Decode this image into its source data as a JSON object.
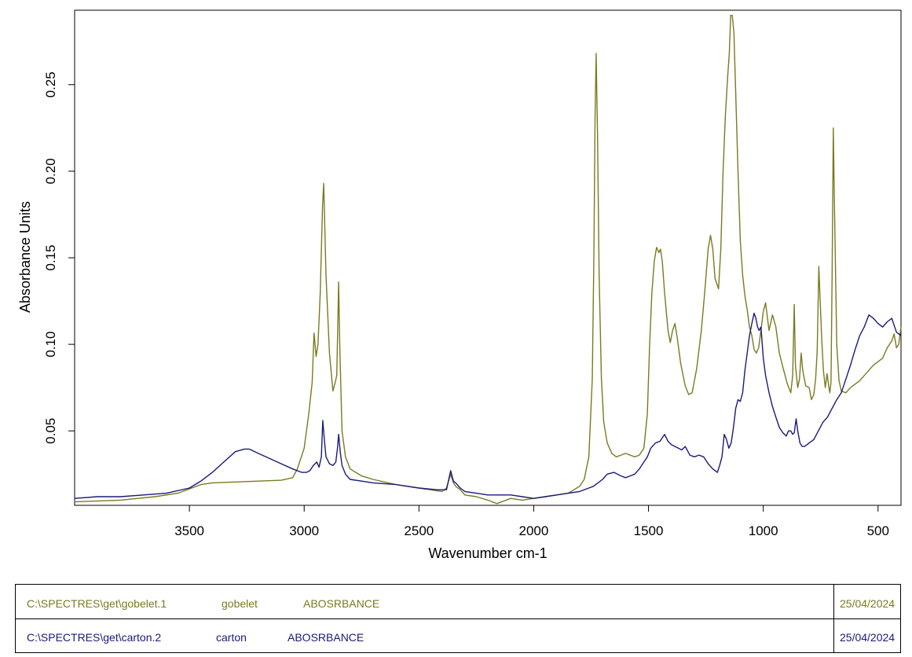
{
  "chart_data": {
    "type": "line",
    "title": "",
    "xlabel": "Wavenumber cm-1",
    "ylabel": "Absorbance Units",
    "xlim": [
      4000,
      400
    ],
    "ylim": [
      0.007,
      0.293
    ],
    "xticks": [
      3500,
      3000,
      2500,
      2000,
      1500,
      1000,
      500
    ],
    "yticks": [
      0.05,
      0.1,
      0.15,
      0.2,
      0.25
    ],
    "ytick_labels": [
      "0.05",
      "0.10",
      "0.15",
      "0.20",
      "0.25"
    ],
    "grid": false,
    "series": [
      {
        "name": "gobelet",
        "color": "#7a7a22",
        "x": [
          4000,
          3800,
          3650,
          3550,
          3450,
          3400,
          3300,
          3200,
          3100,
          3050,
          3030,
          3000,
          2980,
          2965,
          2957,
          2948,
          2940,
          2930,
          2920,
          2915,
          2905,
          2890,
          2875,
          2865,
          2858,
          2850,
          2845,
          2835,
          2820,
          2800,
          2750,
          2700,
          2600,
          2500,
          2400,
          2380,
          2362,
          2350,
          2340,
          2320,
          2300,
          2250,
          2200,
          2160,
          2100,
          2050,
          2000,
          1950,
          1900,
          1850,
          1800,
          1780,
          1760,
          1745,
          1738,
          1733,
          1728,
          1722,
          1715,
          1705,
          1695,
          1680,
          1660,
          1640,
          1620,
          1600,
          1580,
          1560,
          1540,
          1520,
          1505,
          1495,
          1485,
          1475,
          1465,
          1455,
          1448,
          1440,
          1430,
          1415,
          1405,
          1395,
          1385,
          1375,
          1360,
          1340,
          1325,
          1310,
          1290,
          1270,
          1255,
          1240,
          1230,
          1220,
          1210,
          1195,
          1185,
          1175,
          1165,
          1155,
          1148,
          1142,
          1135,
          1128,
          1120,
          1110,
          1100,
          1090,
          1080,
          1070,
          1060,
          1050,
          1040,
          1030,
          1020,
          1010,
          1000,
          990,
          975,
          960,
          945,
          930,
          915,
          895,
          880,
          872,
          865,
          860,
          850,
          842,
          835,
          828,
          815,
          800,
          790,
          780,
          772,
          765,
          758,
          752,
          745,
          738,
          730,
          722,
          715,
          710,
          705,
          700,
          695,
          690,
          680,
          670,
          660,
          640,
          620,
          600,
          580,
          560,
          540,
          520,
          500,
          480,
          470,
          460,
          450,
          440,
          430,
          420,
          410,
          400
        ],
        "values": [
          0.009,
          0.01,
          0.012,
          0.014,
          0.019,
          0.02,
          0.0205,
          0.021,
          0.0215,
          0.023,
          0.028,
          0.04,
          0.06,
          0.078,
          0.1065,
          0.093,
          0.1,
          0.13,
          0.18,
          0.193,
          0.14,
          0.095,
          0.073,
          0.078,
          0.082,
          0.136,
          0.1,
          0.05,
          0.035,
          0.028,
          0.024,
          0.022,
          0.019,
          0.017,
          0.015,
          0.017,
          0.025,
          0.02,
          0.018,
          0.016,
          0.013,
          0.012,
          0.01,
          0.008,
          0.011,
          0.01,
          0.011,
          0.012,
          0.013,
          0.014,
          0.018,
          0.022,
          0.035,
          0.08,
          0.15,
          0.23,
          0.268,
          0.22,
          0.14,
          0.08,
          0.055,
          0.043,
          0.037,
          0.035,
          0.036,
          0.037,
          0.036,
          0.035,
          0.036,
          0.04,
          0.06,
          0.1,
          0.13,
          0.148,
          0.156,
          0.153,
          0.155,
          0.148,
          0.13,
          0.108,
          0.101,
          0.108,
          0.112,
          0.104,
          0.089,
          0.076,
          0.071,
          0.072,
          0.086,
          0.108,
          0.13,
          0.155,
          0.163,
          0.155,
          0.138,
          0.132,
          0.155,
          0.2,
          0.232,
          0.255,
          0.268,
          0.29,
          0.29,
          0.28,
          0.245,
          0.2,
          0.16,
          0.14,
          0.128,
          0.12,
          0.11,
          0.105,
          0.097,
          0.095,
          0.098,
          0.108,
          0.119,
          0.124,
          0.108,
          0.117,
          0.11,
          0.095,
          0.087,
          0.077,
          0.072,
          0.082,
          0.123,
          0.088,
          0.075,
          0.08,
          0.095,
          0.085,
          0.076,
          0.075,
          0.068,
          0.071,
          0.08,
          0.096,
          0.145,
          0.125,
          0.102,
          0.085,
          0.075,
          0.083,
          0.076,
          0.072,
          0.078,
          0.14,
          0.225,
          0.18,
          0.1,
          0.079,
          0.073,
          0.072,
          0.075,
          0.077,
          0.079,
          0.082,
          0.085,
          0.088,
          0.09,
          0.092,
          0.095,
          0.098,
          0.1,
          0.102,
          0.106,
          0.098,
          0.1,
          0.11
        ]
      },
      {
        "name": "carton",
        "color": "#1a1a7a",
        "x": [
          4000,
          3900,
          3800,
          3700,
          3600,
          3500,
          3450,
          3400,
          3350,
          3300,
          3260,
          3240,
          3200,
          3150,
          3100,
          3050,
          3010,
          2990,
          2975,
          2960,
          2945,
          2935,
          2925,
          2919,
          2912,
          2905,
          2890,
          2875,
          2862,
          2855,
          2850,
          2843,
          2835,
          2820,
          2800,
          2750,
          2700,
          2600,
          2500,
          2420,
          2380,
          2362,
          2350,
          2340,
          2320,
          2300,
          2250,
          2200,
          2150,
          2100,
          2050,
          2000,
          1950,
          1900,
          1850,
          1800,
          1760,
          1740,
          1720,
          1700,
          1680,
          1650,
          1620,
          1600,
          1580,
          1560,
          1540,
          1520,
          1505,
          1490,
          1470,
          1450,
          1430,
          1415,
          1400,
          1385,
          1370,
          1355,
          1340,
          1320,
          1300,
          1280,
          1260,
          1240,
          1220,
          1200,
          1190,
          1180,
          1170,
          1160,
          1150,
          1140,
          1130,
          1120,
          1110,
          1100,
          1090,
          1080,
          1070,
          1060,
          1050,
          1040,
          1032,
          1025,
          1018,
          1010,
          1000,
          990,
          975,
          960,
          945,
          930,
          915,
          900,
          890,
          880,
          872,
          865,
          857,
          850,
          840,
          830,
          820,
          800,
          780,
          760,
          740,
          720,
          700,
          680,
          660,
          640,
          620,
          600,
          580,
          560,
          540,
          520,
          500,
          480,
          460,
          440,
          420,
          400
        ],
        "values": [
          0.011,
          0.012,
          0.012,
          0.013,
          0.014,
          0.017,
          0.021,
          0.026,
          0.032,
          0.038,
          0.0395,
          0.0395,
          0.037,
          0.034,
          0.031,
          0.028,
          0.026,
          0.026,
          0.027,
          0.03,
          0.032,
          0.029,
          0.035,
          0.056,
          0.045,
          0.035,
          0.031,
          0.03,
          0.032,
          0.04,
          0.048,
          0.038,
          0.03,
          0.025,
          0.022,
          0.021,
          0.02,
          0.019,
          0.017,
          0.016,
          0.016,
          0.027,
          0.021,
          0.02,
          0.017,
          0.015,
          0.014,
          0.013,
          0.013,
          0.013,
          0.012,
          0.011,
          0.012,
          0.013,
          0.014,
          0.015,
          0.017,
          0.018,
          0.02,
          0.022,
          0.025,
          0.026,
          0.024,
          0.023,
          0.024,
          0.025,
          0.028,
          0.032,
          0.035,
          0.04,
          0.043,
          0.044,
          0.048,
          0.044,
          0.042,
          0.041,
          0.04,
          0.039,
          0.041,
          0.036,
          0.035,
          0.036,
          0.035,
          0.031,
          0.028,
          0.026,
          0.03,
          0.035,
          0.048,
          0.045,
          0.04,
          0.043,
          0.052,
          0.063,
          0.068,
          0.067,
          0.072,
          0.085,
          0.095,
          0.105,
          0.112,
          0.118,
          0.115,
          0.11,
          0.108,
          0.11,
          0.092,
          0.082,
          0.072,
          0.064,
          0.058,
          0.052,
          0.049,
          0.047,
          0.05,
          0.05,
          0.048,
          0.049,
          0.057,
          0.05,
          0.043,
          0.041,
          0.041,
          0.043,
          0.045,
          0.05,
          0.055,
          0.058,
          0.063,
          0.068,
          0.072,
          0.08,
          0.088,
          0.097,
          0.105,
          0.11,
          0.117,
          0.115,
          0.112,
          0.11,
          0.113,
          0.115,
          0.107,
          0.105
        ]
      }
    ]
  },
  "legend": {
    "rows": [
      {
        "path": "C:\\SPECTRES\\get\\gobelet.1",
        "sample": "gobelet",
        "mode": "ABOSRBANCE",
        "date": "25/04/2024",
        "color": "#7a7a22"
      },
      {
        "path": "C:\\SPECTRES\\get\\carton.2",
        "sample": "carton",
        "mode": "ABOSRBANCE",
        "date": "25/04/2024",
        "color": "#1a1a7a"
      }
    ]
  }
}
